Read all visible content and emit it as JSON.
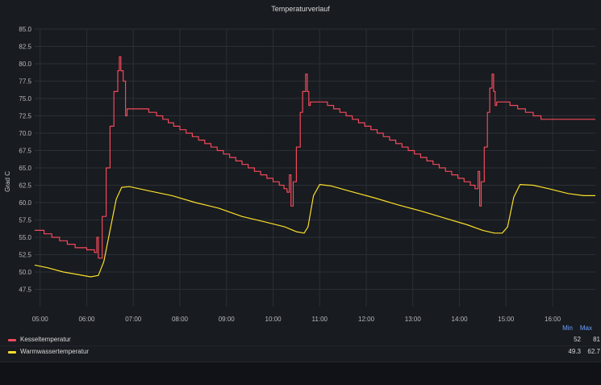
{
  "panel": {
    "title": "Temperaturverlauf"
  },
  "colors": {
    "kessel": "#f2495c",
    "warmwasser": "#fade2a",
    "grid": "#2c2f35",
    "legend_header": "#6e9fff"
  },
  "legend": {
    "min_label": "Min",
    "max_label": "Max",
    "items": [
      {
        "name": "Kesseltemperatur",
        "min": "52",
        "max": "81"
      },
      {
        "name": "Warmwassertemperatur",
        "min": "49.3",
        "max": "62.7"
      }
    ]
  },
  "chart_data": {
    "type": "line",
    "title": "Temperaturverlauf",
    "xlabel": "",
    "ylabel": "Grad C",
    "x_range": [
      "04:53",
      "16:55"
    ],
    "x_ticks": [
      "05:00",
      "06:00",
      "07:00",
      "08:00",
      "09:00",
      "10:00",
      "11:00",
      "12:00",
      "13:00",
      "14:00",
      "15:00",
      "16:00"
    ],
    "ylim": [
      45,
      85
    ],
    "y_ticks": [
      "47.5",
      "50.0",
      "52.5",
      "55.0",
      "57.5",
      "60.0",
      "62.5",
      "65.0",
      "67.5",
      "70.0",
      "72.5",
      "75.0",
      "77.5",
      "80.0",
      "82.5",
      "85.0"
    ],
    "grid": true,
    "legend_position": "bottom",
    "series": [
      {
        "name": "Kesseltemperatur",
        "step": true,
        "points": [
          [
            "04:53",
            56.0
          ],
          [
            "05:05",
            55.5
          ],
          [
            "05:15",
            55.0
          ],
          [
            "05:25",
            54.5
          ],
          [
            "05:35",
            54.0
          ],
          [
            "05:45",
            53.5
          ],
          [
            "06:00",
            53.2
          ],
          [
            "06:10",
            52.8
          ],
          [
            "06:13",
            55.0
          ],
          [
            "06:15",
            52.0
          ],
          [
            "06:20",
            58.0
          ],
          [
            "06:25",
            65.0
          ],
          [
            "06:30",
            71.0
          ],
          [
            "06:35",
            76.0
          ],
          [
            "06:40",
            79.0
          ],
          [
            "06:42",
            81.0
          ],
          [
            "06:44",
            79.0
          ],
          [
            "06:47",
            77.5
          ],
          [
            "06:50",
            72.5
          ],
          [
            "06:52",
            73.5
          ],
          [
            "07:20",
            73.0
          ],
          [
            "07:30",
            72.5
          ],
          [
            "07:38",
            72.0
          ],
          [
            "07:45",
            71.5
          ],
          [
            "07:52",
            71.0
          ],
          [
            "08:00",
            70.5
          ],
          [
            "08:08",
            70.0
          ],
          [
            "08:16",
            69.5
          ],
          [
            "08:24",
            69.0
          ],
          [
            "08:32",
            68.5
          ],
          [
            "08:40",
            68.0
          ],
          [
            "08:48",
            67.5
          ],
          [
            "08:56",
            67.0
          ],
          [
            "09:04",
            66.5
          ],
          [
            "09:12",
            66.0
          ],
          [
            "09:20",
            65.5
          ],
          [
            "09:28",
            65.0
          ],
          [
            "09:36",
            64.5
          ],
          [
            "09:44",
            64.0
          ],
          [
            "09:52",
            63.5
          ],
          [
            "10:00",
            63.0
          ],
          [
            "10:08",
            62.5
          ],
          [
            "10:14",
            62.0
          ],
          [
            "10:18",
            61.5
          ],
          [
            "10:21",
            64.0
          ],
          [
            "10:23",
            59.5
          ],
          [
            "10:26",
            63.0
          ],
          [
            "10:30",
            68.0
          ],
          [
            "10:35",
            73.0
          ],
          [
            "10:38",
            76.0
          ],
          [
            "10:42",
            78.5
          ],
          [
            "10:44",
            76.0
          ],
          [
            "10:46",
            74.0
          ],
          [
            "10:48",
            74.5
          ],
          [
            "11:10",
            74.0
          ],
          [
            "11:18",
            73.5
          ],
          [
            "11:26",
            73.0
          ],
          [
            "11:34",
            72.5
          ],
          [
            "11:42",
            72.0
          ],
          [
            "11:50",
            71.5
          ],
          [
            "11:58",
            71.0
          ],
          [
            "12:06",
            70.5
          ],
          [
            "12:14",
            70.0
          ],
          [
            "12:22",
            69.5
          ],
          [
            "12:30",
            69.0
          ],
          [
            "12:38",
            68.5
          ],
          [
            "12:46",
            68.0
          ],
          [
            "12:54",
            67.5
          ],
          [
            "13:02",
            67.0
          ],
          [
            "13:10",
            66.5
          ],
          [
            "13:18",
            66.0
          ],
          [
            "13:26",
            65.5
          ],
          [
            "13:34",
            65.0
          ],
          [
            "13:42",
            64.5
          ],
          [
            "13:50",
            64.0
          ],
          [
            "13:58",
            63.5
          ],
          [
            "14:06",
            63.0
          ],
          [
            "14:14",
            62.5
          ],
          [
            "14:20",
            62.0
          ],
          [
            "14:24",
            64.5
          ],
          [
            "14:26",
            59.5
          ],
          [
            "14:28",
            63.0
          ],
          [
            "14:32",
            68.0
          ],
          [
            "14:36",
            73.0
          ],
          [
            "14:39",
            76.5
          ],
          [
            "14:42",
            78.5
          ],
          [
            "14:44",
            76.0
          ],
          [
            "14:46",
            74.0
          ],
          [
            "14:48",
            74.5
          ],
          [
            "15:05",
            74.0
          ],
          [
            "15:15",
            73.5
          ],
          [
            "15:25",
            73.0
          ],
          [
            "15:35",
            72.5
          ],
          [
            "15:45",
            72.0
          ],
          [
            "16:55",
            72.0
          ]
        ]
      },
      {
        "name": "Warmwassertemperatur",
        "step": false,
        "points": [
          [
            "04:53",
            51.0
          ],
          [
            "05:10",
            50.6
          ],
          [
            "05:30",
            50.0
          ],
          [
            "05:50",
            49.6
          ],
          [
            "06:05",
            49.3
          ],
          [
            "06:15",
            49.5
          ],
          [
            "06:22",
            51.5
          ],
          [
            "06:30",
            56.0
          ],
          [
            "06:38",
            60.5
          ],
          [
            "06:45",
            62.2
          ],
          [
            "06:55",
            62.3
          ],
          [
            "07:20",
            61.7
          ],
          [
            "07:50",
            61.0
          ],
          [
            "08:20",
            60.0
          ],
          [
            "08:50",
            59.2
          ],
          [
            "09:20",
            58.0
          ],
          [
            "09:50",
            57.2
          ],
          [
            "10:15",
            56.5
          ],
          [
            "10:30",
            55.8
          ],
          [
            "10:40",
            55.6
          ],
          [
            "10:45",
            56.5
          ],
          [
            "10:52",
            61.0
          ],
          [
            "11:00",
            62.6
          ],
          [
            "11:15",
            62.4
          ],
          [
            "11:40",
            61.6
          ],
          [
            "12:10",
            60.7
          ],
          [
            "12:40",
            59.7
          ],
          [
            "13:10",
            58.8
          ],
          [
            "13:40",
            57.8
          ],
          [
            "14:10",
            56.8
          ],
          [
            "14:30",
            56.0
          ],
          [
            "14:45",
            55.6
          ],
          [
            "14:55",
            55.6
          ],
          [
            "15:02",
            56.5
          ],
          [
            "15:10",
            60.8
          ],
          [
            "15:18",
            62.6
          ],
          [
            "15:35",
            62.5
          ],
          [
            "15:55",
            62.0
          ],
          [
            "16:20",
            61.3
          ],
          [
            "16:40",
            61.0
          ],
          [
            "16:55",
            61.0
          ]
        ]
      }
    ]
  }
}
